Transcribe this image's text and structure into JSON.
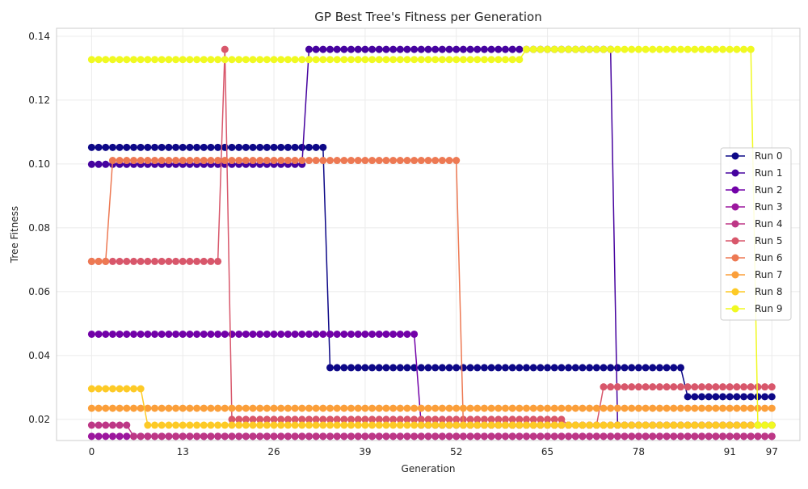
{
  "chart_data": {
    "type": "line",
    "title": "GP Best Tree's Fitness per Generation",
    "xlabel": "Generation",
    "ylabel": "Tree Fitness",
    "xlim": [
      -5,
      101
    ],
    "ylim": [
      0.0134,
      0.1425
    ],
    "xticks": [
      0,
      13,
      26,
      39,
      52,
      65,
      78,
      91,
      97
    ],
    "yticks": [
      0.02,
      0.04,
      0.06,
      0.08,
      0.1,
      0.12,
      0.14
    ],
    "ytick_labels": [
      "0.02",
      "0.04",
      "0.06",
      "0.08",
      "0.10",
      "0.12",
      "0.14"
    ],
    "grid": true,
    "legend_position": "right",
    "series": [
      {
        "name": "Run 0",
        "color": "#0d0887",
        "segments": [
          [
            0,
            33,
            0.1052
          ],
          [
            34,
            84,
            0.0362
          ],
          [
            85,
            97,
            0.0271
          ]
        ]
      },
      {
        "name": "Run 1",
        "color": "#46039f",
        "segments": [
          [
            0,
            30,
            0.0999
          ],
          [
            31,
            74,
            0.1359
          ],
          [
            75,
            97,
            0.0182
          ]
        ]
      },
      {
        "name": "Run 2",
        "color": "#7201a8",
        "segments": [
          [
            0,
            46,
            0.0467
          ],
          [
            47,
            97,
            0.0182
          ]
        ]
      },
      {
        "name": "Run 3",
        "color": "#9c179e",
        "segments": [
          [
            0,
            97,
            0.0147
          ]
        ]
      },
      {
        "name": "Run 4",
        "color": "#bd3786",
        "segments": [
          [
            0,
            5,
            0.0182
          ],
          [
            6,
            97,
            0.0147
          ]
        ]
      },
      {
        "name": "Run 5",
        "color": "#d8576b",
        "segments": [
          [
            0,
            18,
            0.0695
          ],
          [
            19,
            19,
            0.1359
          ],
          [
            20,
            67,
            0.02
          ],
          [
            68,
            72,
            0.0182
          ],
          [
            73,
            97,
            0.0302
          ]
        ]
      },
      {
        "name": "Run 6",
        "color": "#ed7953",
        "segments": [
          [
            0,
            2,
            0.0695
          ],
          [
            3,
            52,
            0.1011
          ],
          [
            53,
            97,
            0.0182
          ]
        ]
      },
      {
        "name": "Run 7",
        "color": "#fb9f3a",
        "segments": [
          [
            0,
            97,
            0.0235
          ]
        ]
      },
      {
        "name": "Run 8",
        "color": "#fdca26",
        "segments": [
          [
            0,
            7,
            0.0296
          ],
          [
            8,
            97,
            0.0182
          ]
        ]
      },
      {
        "name": "Run 9",
        "color": "#f0f921",
        "segments": [
          [
            0,
            61,
            0.1327
          ],
          [
            62,
            94,
            0.1359
          ],
          [
            95,
            97,
            0.0182
          ]
        ]
      }
    ]
  }
}
